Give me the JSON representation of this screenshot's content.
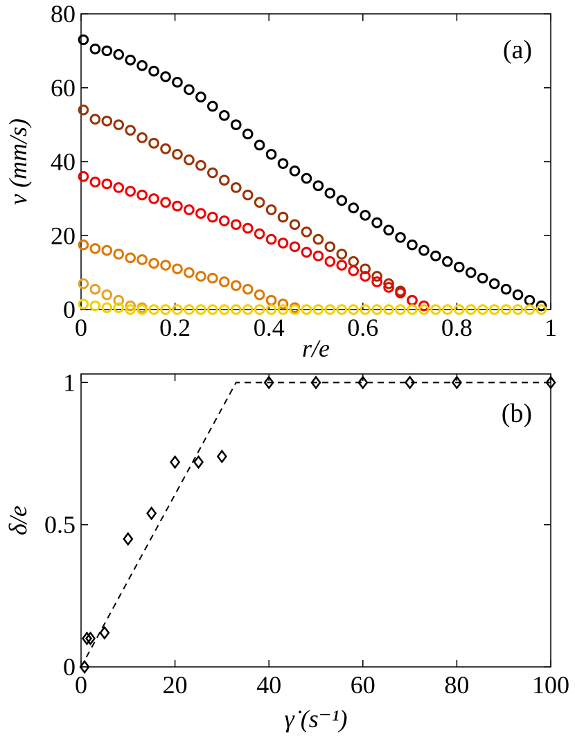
{
  "chart_data": [
    {
      "type": "scatter",
      "xlabel": "r/e",
      "ylabel": "v (mm/s)",
      "annotation": "(a)",
      "xlim": [
        0,
        1
      ],
      "ylim": [
        0,
        80
      ],
      "xticks": [
        0,
        0.2,
        0.4,
        0.6,
        0.8,
        1
      ],
      "yticks": [
        0,
        20,
        40,
        60,
        80
      ],
      "marker": "circle",
      "x": [
        0.005,
        0.03,
        0.055,
        0.08,
        0.105,
        0.13,
        0.155,
        0.18,
        0.205,
        0.23,
        0.255,
        0.28,
        0.305,
        0.33,
        0.355,
        0.38,
        0.405,
        0.43,
        0.455,
        0.48,
        0.505,
        0.53,
        0.555,
        0.58,
        0.605,
        0.63,
        0.655,
        0.68,
        0.705,
        0.73,
        0.755,
        0.78,
        0.805,
        0.83,
        0.855,
        0.88,
        0.905,
        0.93,
        0.955,
        0.98
      ],
      "series": [
        {
          "color": "#000000",
          "values": [
            73,
            70.5,
            70,
            69,
            67.5,
            66,
            64.5,
            63,
            61.5,
            59.5,
            57.5,
            55,
            52.5,
            50,
            47.5,
            44.5,
            42,
            39.5,
            37.5,
            35.5,
            33.5,
            31.5,
            29.5,
            27.5,
            25.5,
            23.5,
            21.5,
            19.5,
            17.5,
            16,
            14.5,
            13,
            11.5,
            10,
            8.5,
            7,
            5.5,
            4,
            2.5,
            1
          ]
        },
        {
          "color": "#993300",
          "values": [
            54,
            51.5,
            51,
            50,
            48.5,
            46.5,
            45,
            43.5,
            42,
            40.5,
            39,
            37,
            35,
            33,
            31,
            29,
            27,
            25,
            23,
            21,
            19,
            17,
            15,
            13,
            11,
            9,
            7,
            5,
            2.5,
            null,
            null,
            null,
            null,
            null,
            null,
            null,
            null,
            null,
            null,
            null
          ]
        },
        {
          "color": "#ee0000",
          "values": [
            36,
            34.5,
            34,
            33,
            32,
            31,
            30,
            29,
            28,
            27,
            26,
            25,
            24,
            23,
            22,
            20.5,
            19,
            18,
            17,
            15.5,
            14.5,
            13,
            12,
            10.5,
            9,
            7.5,
            6,
            4.5,
            2.5,
            1,
            null,
            null,
            null,
            null,
            null,
            null,
            null,
            null,
            null,
            null
          ]
        },
        {
          "color": "#dd7700",
          "values": [
            17.5,
            16.5,
            16,
            15,
            14,
            13.5,
            12.5,
            12,
            11,
            10,
            9,
            8.5,
            7.5,
            6.5,
            5.5,
            4,
            2.5,
            1.5,
            0.5,
            null,
            null,
            null,
            null,
            null,
            null,
            null,
            null,
            null,
            null,
            null,
            null,
            null,
            null,
            null,
            null,
            null,
            null,
            null,
            null,
            null
          ]
        },
        {
          "color": "#e8a020",
          "values": [
            7,
            5.5,
            4,
            2.5,
            1,
            0.5,
            null,
            null,
            null,
            null,
            null,
            null,
            null,
            null,
            null,
            null,
            null,
            null,
            null,
            null,
            null,
            null,
            null,
            null,
            null,
            null,
            null,
            null,
            null,
            null,
            null,
            null,
            null,
            null,
            null,
            null,
            null,
            null,
            null,
            null
          ]
        },
        {
          "color": "#f2d000",
          "values": [
            1.5,
            1,
            0.5,
            0.5,
            0,
            0,
            0,
            0,
            0,
            0,
            0,
            0,
            0,
            0,
            0,
            0,
            0,
            0,
            0,
            0,
            0,
            0,
            0,
            0,
            0,
            0,
            0,
            0,
            0,
            0,
            0,
            0,
            0,
            0,
            0,
            0,
            0,
            0,
            0,
            0
          ]
        }
      ]
    },
    {
      "type": "scatter",
      "xlabel": "γ̇ (s⁻¹)",
      "ylabel": "δ/e",
      "annotation": "(b)",
      "xlim": [
        0,
        100
      ],
      "ylim": [
        0,
        1.03
      ],
      "xticks": [
        0,
        20,
        40,
        60,
        80,
        100
      ],
      "yticks": [
        0,
        0.5,
        1
      ],
      "series": [
        {
          "color": "#000000",
          "marker": "diamond",
          "x": [
            0.75,
            1.25,
            2,
            5,
            10,
            15,
            20,
            25,
            30,
            40,
            50,
            60,
            70,
            80,
            100
          ],
          "values": [
            0,
            0.1,
            0.1,
            0.12,
            0.45,
            0.54,
            0.72,
            0.72,
            0.74,
            1,
            1,
            1,
            1,
            1,
            1
          ]
        },
        {
          "color": "#000000",
          "style": "dashed",
          "x": [
            0,
            33,
            100
          ],
          "values": [
            0,
            1,
            1
          ]
        }
      ]
    }
  ]
}
